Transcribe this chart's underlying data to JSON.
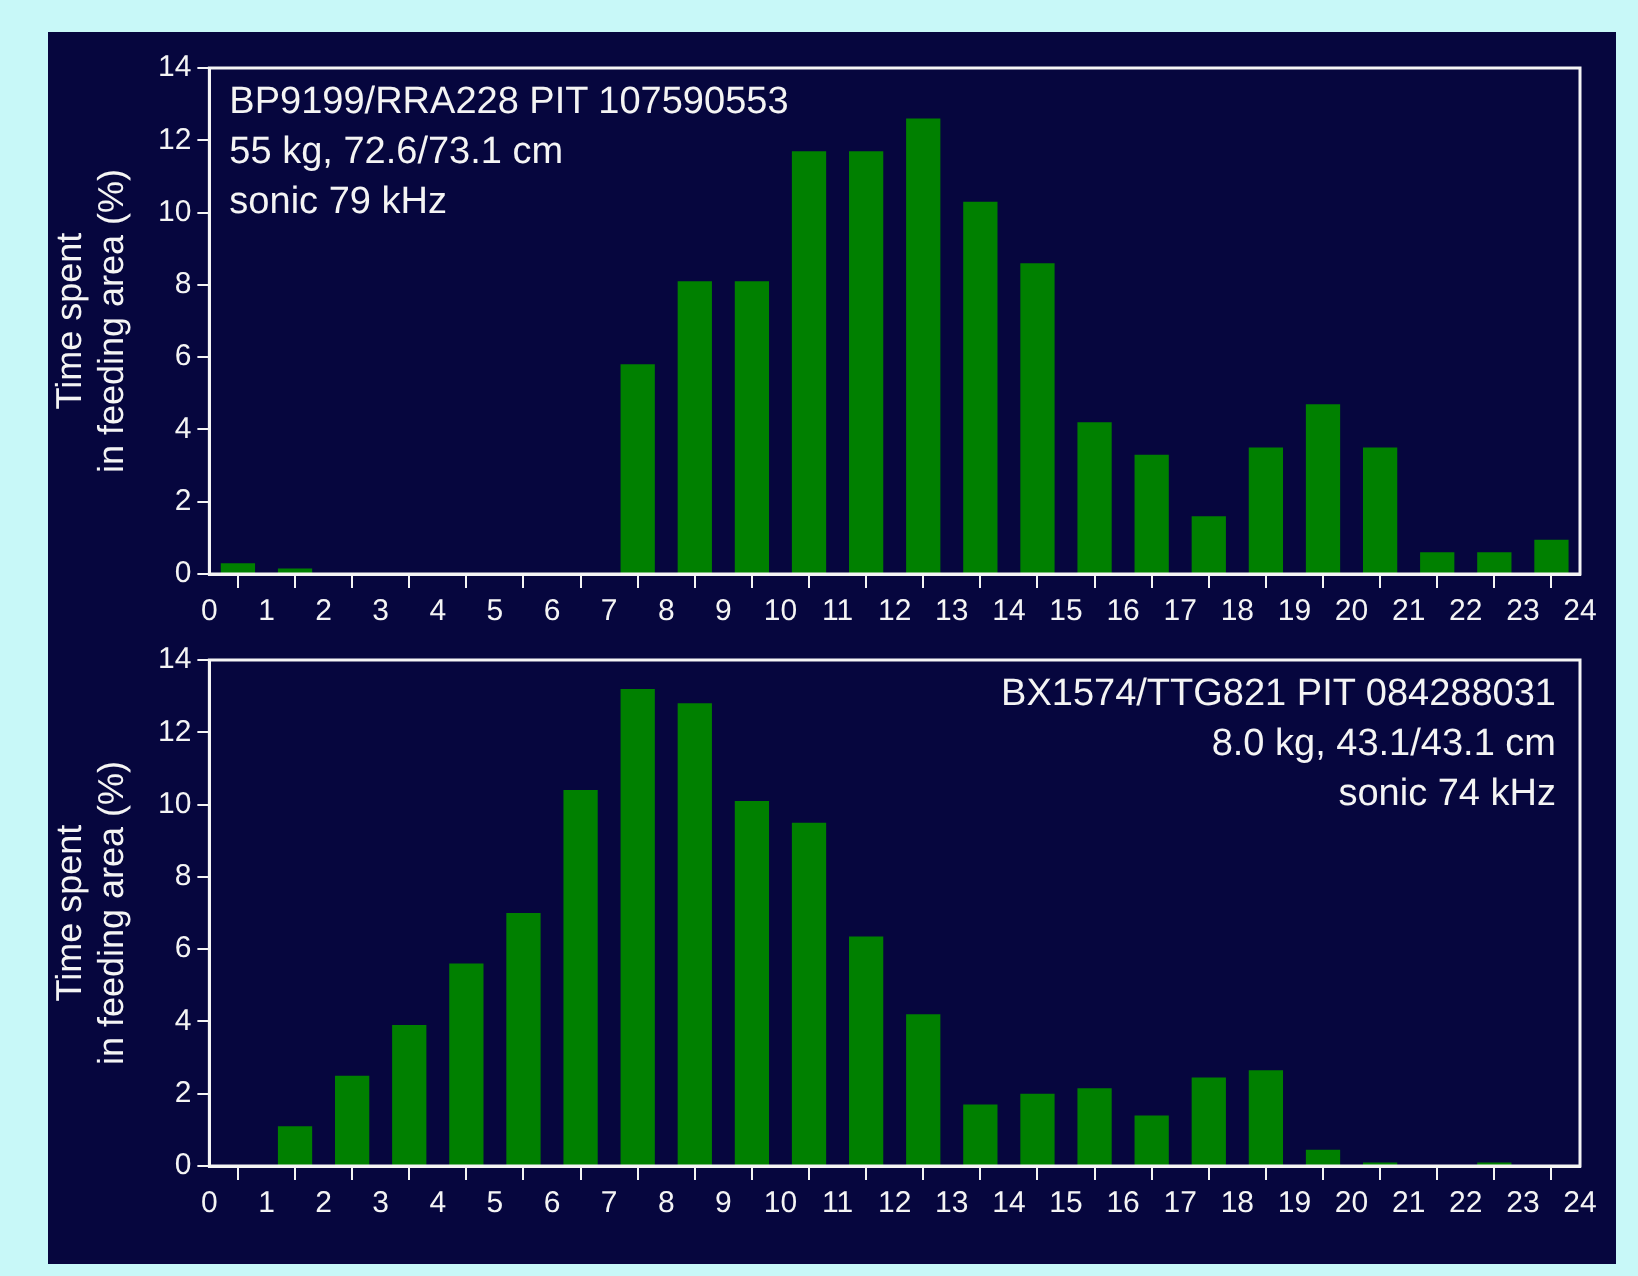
{
  "chart_data": [
    {
      "type": "histogram",
      "ylabel": "Time spent\nin feeding area (%)",
      "annotations": [
        "BP9199/RRA228 PIT 107590553",
        "55 kg, 72.6/73.1 cm",
        "sonic 79 kHz"
      ],
      "bins": [
        0,
        1,
        2,
        3,
        4,
        5,
        6,
        7,
        8,
        9,
        10,
        11,
        12,
        13,
        14,
        15,
        16,
        17,
        18,
        19,
        20,
        21,
        22,
        23,
        24
      ],
      "values": [
        0.3,
        0.15,
        0,
        0,
        0,
        0,
        0,
        5.8,
        8.1,
        8.1,
        11.7,
        11.7,
        12.6,
        10.3,
        8.6,
        4.2,
        3.3,
        1.6,
        3.5,
        4.7,
        3.5,
        0.6,
        0.6,
        0.95
      ],
      "color": "#008000",
      "xlim": [
        0,
        24
      ],
      "xticks": [
        0,
        1,
        2,
        3,
        4,
        5,
        6,
        7,
        8,
        9,
        10,
        11,
        12,
        13,
        14,
        15,
        16,
        17,
        18,
        19,
        20,
        21,
        22,
        23,
        24
      ],
      "ylim": [
        0,
        14
      ],
      "yticks": [
        0,
        2,
        4,
        6,
        8,
        10,
        12,
        14
      ],
      "grid": false,
      "legend": false
    },
    {
      "type": "histogram",
      "ylabel": "Time spent\nin feeding area (%)",
      "annotations": [
        "BX1574/TTG821 PIT 084288031",
        "8.0 kg, 43.1/43.1 cm",
        "sonic 74 kHz"
      ],
      "bins": [
        0,
        1,
        2,
        3,
        4,
        5,
        6,
        7,
        8,
        9,
        10,
        11,
        12,
        13,
        14,
        15,
        16,
        17,
        18,
        19,
        20,
        21,
        22,
        23,
        24
      ],
      "values": [
        0,
        1.1,
        2.5,
        3.9,
        5.6,
        7.0,
        10.4,
        13.2,
        12.8,
        10.1,
        9.5,
        6.35,
        4.2,
        1.7,
        2.0,
        2.15,
        1.4,
        2.45,
        2.65,
        0.45,
        0.1,
        0,
        0.1,
        0
      ],
      "color": "#008000",
      "xlim": [
        0,
        24
      ],
      "xticks": [
        0,
        1,
        2,
        3,
        4,
        5,
        6,
        7,
        8,
        9,
        10,
        11,
        12,
        13,
        14,
        15,
        16,
        17,
        18,
        19,
        20,
        21,
        22,
        23,
        24
      ],
      "ylim": [
        0,
        14
      ],
      "yticks": [
        0,
        2,
        4,
        6,
        8,
        10,
        12,
        14
      ],
      "grid": false,
      "legend": false
    }
  ]
}
